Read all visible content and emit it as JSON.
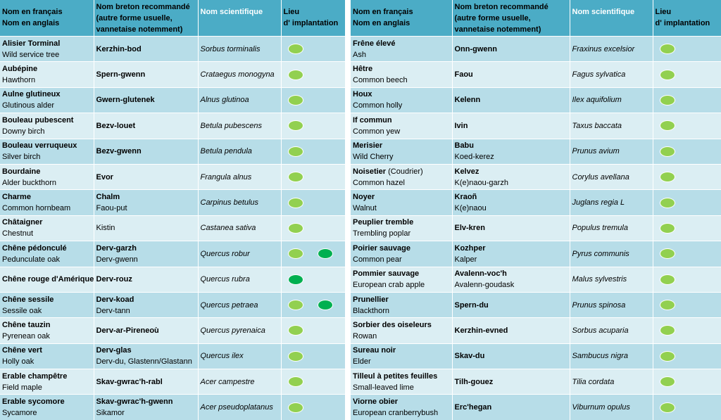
{
  "header": {
    "col_name_line1": "Nom en français",
    "col_name_line2": "Nom en anglais",
    "col_breton_line1": "Nom breton recommandé",
    "col_breton_line2": "(autre forme usuelle,",
    "col_breton_line3": "vannetaise notemment)",
    "col_sci": "Nom scientifique",
    "col_lieu_line1": "Lieu",
    "col_lieu_line2": "d' implantation"
  },
  "colors": {
    "header_bg": "#4bacc6",
    "row_odd": "#b7dde8",
    "row_even": "#dbeef3",
    "dot_light": "#92d050",
    "dot_dark": "#00b050"
  },
  "left_rows": [
    {
      "fr": "Alisier Torminal",
      "en": "Wild service tree",
      "br": "Kerzhin-bod",
      "br_alt": "",
      "sci": "Sorbus torminalis",
      "dots": [
        "light"
      ]
    },
    {
      "fr": "Aubépine",
      "en": "Hawthorn",
      "br": "Spern-gwenn",
      "br_alt": "",
      "sci": "Crataegus monogyna",
      "dots": [
        "light"
      ]
    },
    {
      "fr": "Aulne glutineux",
      "en": "Glutinous alder",
      "br": "Gwern-glutenek",
      "br_alt": "",
      "sci": "Alnus glutinoa",
      "dots": [
        "light"
      ]
    },
    {
      "fr": "Bouleau pubescent",
      "en": "Downy birch",
      "br": "Bezv-louet",
      "br_alt": "",
      "sci": "Betula pubescens",
      "dots": [
        "light"
      ]
    },
    {
      "fr": "Bouleau verruqueux",
      "en": "Silver birch",
      "br": "Bezv-gwenn",
      "br_alt": "",
      "sci": "Betula pendula",
      "dots": [
        "light"
      ]
    },
    {
      "fr": "Bourdaine",
      "en": "Alder buckthorn",
      "br": "Evor",
      "br_alt": "",
      "sci": "Frangula alnus",
      "dots": [
        "light"
      ]
    },
    {
      "fr": "Charme",
      "en": "Common hornbeam",
      "br": "Chalm",
      "br_alt": "Faou-put",
      "sci": "Carpinus betulus",
      "dots": [
        "light"
      ]
    },
    {
      "fr": "Châtaigner",
      "en": "Chestnut",
      "br": "",
      "br_alt": "Kistin",
      "sci": "Castanea sativa",
      "dots": [
        "light"
      ]
    },
    {
      "fr": "Chêne pédonculé",
      "en": "Pedunculate oak",
      "br": "Derv-garzh",
      "br_alt": "Derv-gwenn",
      "sci": "Quercus robur",
      "dots": [
        "light",
        "dark"
      ]
    },
    {
      "fr": "Chêne rouge d'Amérique",
      "en": "",
      "br": "Derv-rouz",
      "br_alt": "",
      "sci": "Quercus rubra",
      "dots": [
        "dark"
      ]
    },
    {
      "fr": "Chêne sessile",
      "en": "Sessile oak",
      "br": "Derv-koad",
      "br_alt": "Derv-tann",
      "sci": "Quercus petraea",
      "dots": [
        "light",
        "dark"
      ]
    },
    {
      "fr": "Chêne tauzin",
      "en": "Pyrenean oak",
      "br": "Derv-ar-Pireneoù",
      "br_alt": "",
      "sci": "Quercus pyrenaica",
      "dots": [
        "light"
      ]
    },
    {
      "fr": "Chêne vert",
      "en": "Holly oak",
      "br": "Derv-glas",
      "br_alt": "Derv-du, Glastenn/Glastann",
      "sci": "Quercus ilex",
      "dots": [
        "light"
      ]
    },
    {
      "fr": "Erable champêtre",
      "en": "Field maple",
      "br": "Skav-gwrac'h-rabl",
      "br_alt": "",
      "sci": "Acer campestre",
      "dots": [
        "light"
      ]
    },
    {
      "fr": "Erable sycomore",
      "en": "Sycamore",
      "br": "Skav-gwrac'h-gwenn",
      "br_alt": "Sikamor",
      "sci": "Acer pseudoplatanus",
      "dots": [
        "light"
      ]
    }
  ],
  "right_rows": [
    {
      "fr": "Frêne élevé",
      "fr_extra": "",
      "en": "Ash",
      "br": "Onn-gwenn",
      "br_alt": "",
      "sci": "Fraxinus excelsior",
      "dots": [
        "light"
      ]
    },
    {
      "fr": "Hêtre",
      "fr_extra": "",
      "en": "Common beech",
      "br": "Faou",
      "br_alt": "",
      "sci": "Fagus sylvatica",
      "dots": [
        "light"
      ]
    },
    {
      "fr": "Houx",
      "fr_extra": "",
      "en": "Common holly",
      "br": "Kelenn",
      "br_alt": "",
      "sci": "Ilex aquifolium",
      "dots": [
        "light"
      ]
    },
    {
      "fr": "If commun",
      "fr_extra": "",
      "en": "Common yew",
      "br": "Ivin",
      "br_alt": "",
      "sci": "Taxus baccata",
      "dots": [
        "light"
      ]
    },
    {
      "fr": "Merisier",
      "fr_extra": "",
      "en": "Wild Cherry",
      "br": "Babu",
      "br_alt": "Koed-kerez",
      "sci": "Prunus avium",
      "dots": [
        "light"
      ]
    },
    {
      "fr": "Noisetier",
      "fr_extra": " (Coudrier)",
      "en": "Common hazel",
      "br": "Kelvez",
      "br_alt": "K(e)naou-garzh",
      "sci": "Corylus avellana",
      "dots": [
        "light"
      ]
    },
    {
      "fr": "Noyer",
      "fr_extra": "",
      "en": "Walnut",
      "br": "Kraoñ",
      "br_alt": "K(e)naou",
      "sci": "Juglans regia L",
      "dots": [
        "light"
      ]
    },
    {
      "fr": "Peuplier tremble",
      "fr_extra": "",
      "en": "Trembling poplar",
      "br": "Elv-kren",
      "br_alt": "",
      "sci": "Populus tremula",
      "dots": [
        "light"
      ]
    },
    {
      "fr": "Poirier sauvage",
      "fr_extra": "",
      "en": "Common pear",
      "br": "Kozhper",
      "br_alt": "Kalper",
      "sci": "Pyrus communis",
      "dots": [
        "light"
      ]
    },
    {
      "fr": "Pommier sauvage",
      "fr_extra": "",
      "en": "European crab apple",
      "br": "Avalenn-voc'h",
      "br_alt": "Avalenn-goudask",
      "sci": "Malus sylvestris",
      "dots": [
        "light"
      ]
    },
    {
      "fr": "Prunellier",
      "fr_extra": "",
      "en": "Blackthorn",
      "br": "Spern-du",
      "br_alt": "",
      "sci": "Prunus spinosa",
      "dots": [
        "light"
      ]
    },
    {
      "fr": "Sorbier des oiseleurs",
      "fr_extra": "",
      "en": "Rowan",
      "br": "Kerzhin-evned",
      "br_alt": "",
      "sci": "Sorbus acuparia",
      "dots": [
        "light"
      ]
    },
    {
      "fr": "Sureau noir",
      "fr_extra": "",
      "en": "Elder",
      "br": "Skav-du",
      "br_alt": "",
      "sci": "Sambucus nigra",
      "dots": [
        "light"
      ]
    },
    {
      "fr": "Tilleul à petites feuilles",
      "fr_extra": "",
      "en": "Small-leaved lime",
      "br": "Tilh-gouez",
      "br_alt": "",
      "sci": "Tilia cordata",
      "dots": [
        "light"
      ]
    },
    {
      "fr": "Viorne obier",
      "fr_extra": "",
      "en": "European cranberrybush",
      "br": "Erc'hegan",
      "br_alt": "",
      "sci": "Viburnum opulus",
      "dots": [
        "light"
      ]
    }
  ]
}
